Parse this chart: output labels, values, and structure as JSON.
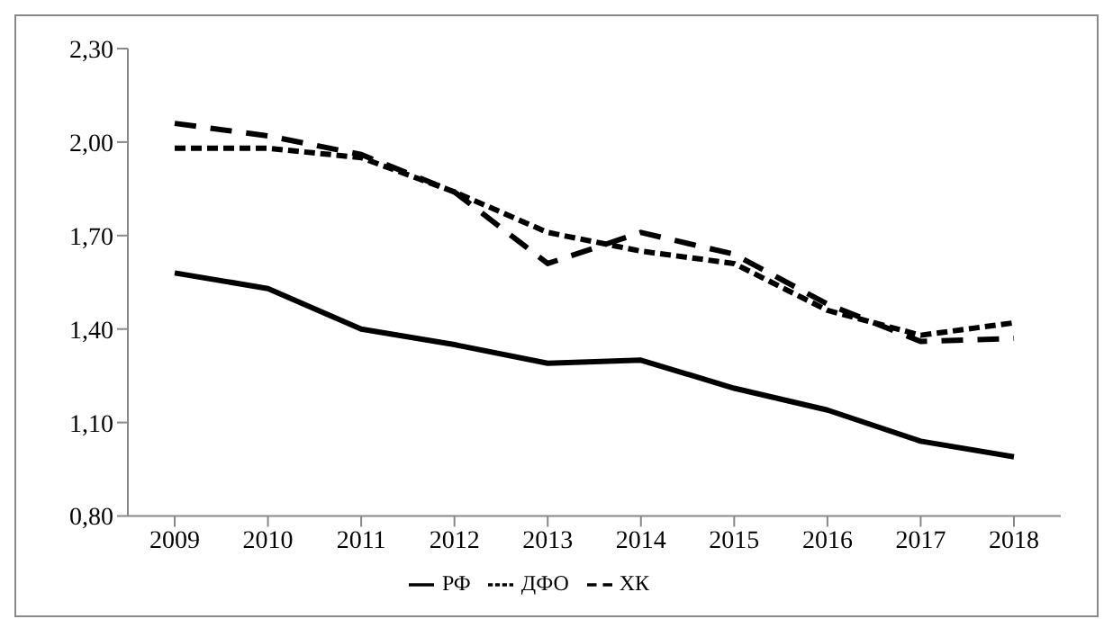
{
  "chart_data": {
    "type": "line",
    "categories": [
      "2009",
      "2010",
      "2011",
      "2012",
      "2013",
      "2014",
      "2015",
      "2016",
      "2017",
      "2018"
    ],
    "series": [
      {
        "name": "РФ",
        "color": "#000000",
        "line_style": "solid",
        "values": [
          1.58,
          1.53,
          1.4,
          1.35,
          1.29,
          1.3,
          1.21,
          1.14,
          1.04,
          0.99
        ]
      },
      {
        "name": "ДФО",
        "color": "#000000",
        "line_style": "dotted",
        "values": [
          1.98,
          1.98,
          1.95,
          1.84,
          1.71,
          1.65,
          1.61,
          1.46,
          1.38,
          1.42
        ]
      },
      {
        "name": "ХК",
        "color": "#000000",
        "line_style": "dashed",
        "values": [
          2.06,
          2.02,
          1.96,
          1.84,
          1.61,
          1.71,
          1.64,
          1.48,
          1.36,
          1.37
        ]
      }
    ],
    "ylim": [
      0.8,
      2.3
    ],
    "yticks": [
      {
        "value": 0.8,
        "label": "0,80"
      },
      {
        "value": 1.1,
        "label": "1,10"
      },
      {
        "value": 1.4,
        "label": "1,40"
      },
      {
        "value": 1.7,
        "label": "1,70"
      },
      {
        "value": 2.0,
        "label": "2,00"
      },
      {
        "value": 2.3,
        "label": "2,30"
      }
    ],
    "grid": false,
    "legend": "bottom",
    "marker": "none"
  }
}
